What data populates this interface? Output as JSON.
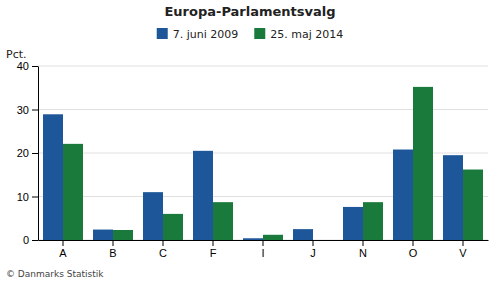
{
  "chart_data": {
    "type": "bar",
    "title": "Europa-Parlamentsvalg",
    "ylabel": "Pct.",
    "footer": "© Danmarks Statistik",
    "categories": [
      "A",
      "B",
      "C",
      "F",
      "I",
      "J",
      "N",
      "O",
      "V"
    ],
    "series": [
      {
        "name": "7. juni 2009",
        "color": "#1e5799",
        "values": [
          28.9,
          2.4,
          11.0,
          20.5,
          0.4,
          2.5,
          7.6,
          20.8,
          19.5
        ]
      },
      {
        "name": "25. maj 2014",
        "color": "#1a7a3c",
        "values": [
          22.1,
          2.3,
          6.0,
          8.7,
          1.2,
          0.0,
          8.7,
          35.2,
          16.2
        ]
      }
    ],
    "ylim": [
      0,
      40
    ],
    "yticks": [
      0,
      10,
      20,
      30,
      40
    ],
    "grid": true,
    "legend": "top"
  }
}
